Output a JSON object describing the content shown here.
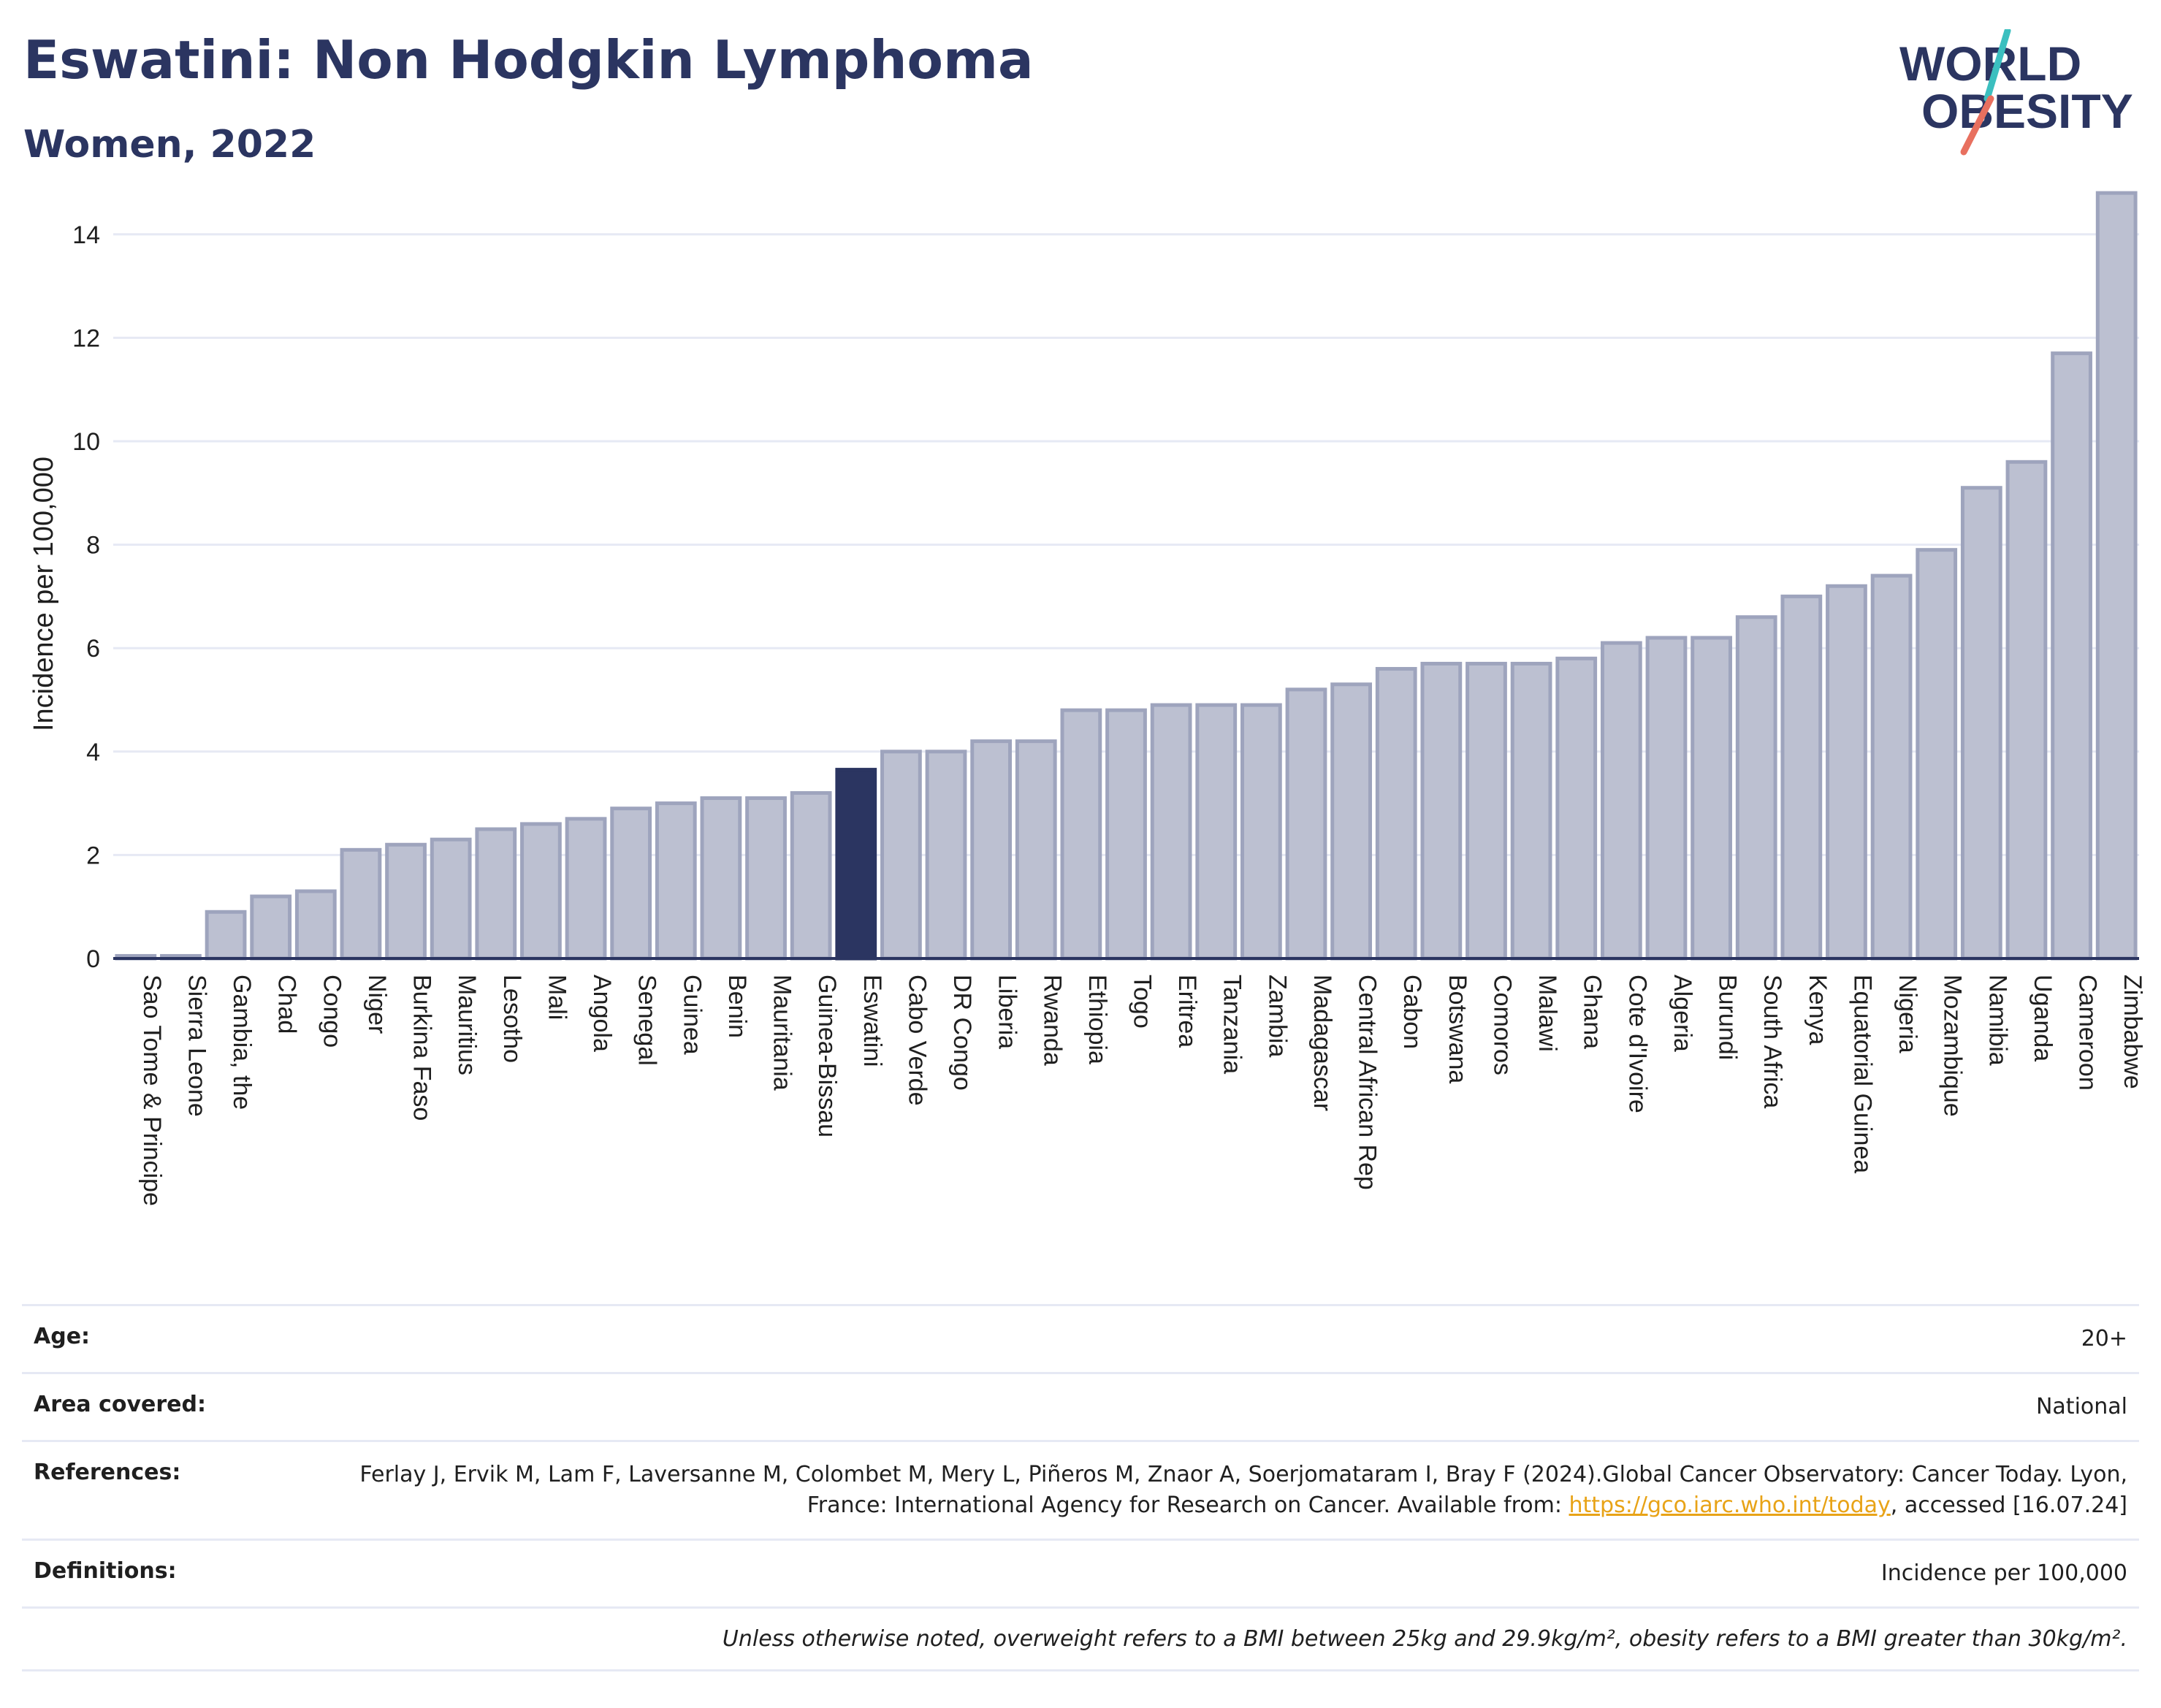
{
  "header": {
    "title": "Eswatini: Non Hodgkin Lymphoma",
    "subtitle": "Women, 2022"
  },
  "logo": {
    "line1": "WORLD",
    "line2": "OBESITY",
    "accent_teal": "#3bbfbf",
    "accent_coral": "#e8705f"
  },
  "colors": {
    "bar": "#bcc0d1",
    "bar_edge": "#9ea4bd",
    "highlight": "#2b3561",
    "grid": "#e6e9f4",
    "text": "#2b3561"
  },
  "chart_data": {
    "type": "bar",
    "ylabel": "Incidence per 100,000",
    "xlabel": "",
    "ylim": [
      0,
      15
    ],
    "yticks": [
      0,
      2,
      4,
      6,
      8,
      10,
      12,
      14
    ],
    "grid": true,
    "highlight": "Eswatini",
    "categories": [
      "Sao Tome & Principe",
      "Sierra Leone",
      "Gambia, the",
      "Chad",
      "Congo",
      "Niger",
      "Burkina Faso",
      "Mauritius",
      "Lesotho",
      "Mali",
      "Angola",
      "Senegal",
      "Guinea",
      "Benin",
      "Mauritania",
      "Guinea-Bissau",
      "Eswatini",
      "Cabo Verde",
      "DR Congo",
      "Liberia",
      "Rwanda",
      "Ethiopia",
      "Togo",
      "Eritrea",
      "Tanzania",
      "Zambia",
      "Madagascar",
      "Central African Rep",
      "Gabon",
      "Botswana",
      "Comoros",
      "Malawi",
      "Ghana",
      "Cote d'Ivoire",
      "Algeria",
      "Burundi",
      "South Africa",
      "Kenya",
      "Equatorial Guinea",
      "Nigeria",
      "Mozambique",
      "Namibia",
      "Uganda",
      "Cameroon",
      "Zimbabwe"
    ],
    "values": [
      0.05,
      0.05,
      0.9,
      1.2,
      1.3,
      2.1,
      2.2,
      2.3,
      2.5,
      2.6,
      2.7,
      2.9,
      3.0,
      3.1,
      3.1,
      3.2,
      3.65,
      4.0,
      4.0,
      4.2,
      4.2,
      4.8,
      4.8,
      4.9,
      4.9,
      4.9,
      5.2,
      5.3,
      5.6,
      5.7,
      5.7,
      5.7,
      5.8,
      6.1,
      6.2,
      6.2,
      6.6,
      7.0,
      7.2,
      7.4,
      7.9,
      9.1,
      9.6,
      11.7,
      14.8
    ]
  },
  "info": {
    "age_label": "Age:",
    "age_value": "20+",
    "area_label": "Area covered:",
    "area_value": "National",
    "references_label": "References:",
    "references_text_1": "Ferlay J, Ervik M, Lam F, Laversanne M, Colombet M, Mery L, Piñeros M, Znaor A, Soerjomataram I, Bray F (2024).Global Cancer Observatory: Cancer Today. Lyon, France: International Agency for Research on Cancer. Available from: ",
    "references_link": "https://gco.iarc.who.int/today",
    "references_text_2": ", accessed [16.07.24]",
    "definitions_label": "Definitions:",
    "definitions_value": "Incidence per 100,000",
    "note": "Unless otherwise noted, overweight refers to a BMI between 25kg and 29.9kg/m², obesity refers to a BMI greater than 30kg/m²."
  }
}
